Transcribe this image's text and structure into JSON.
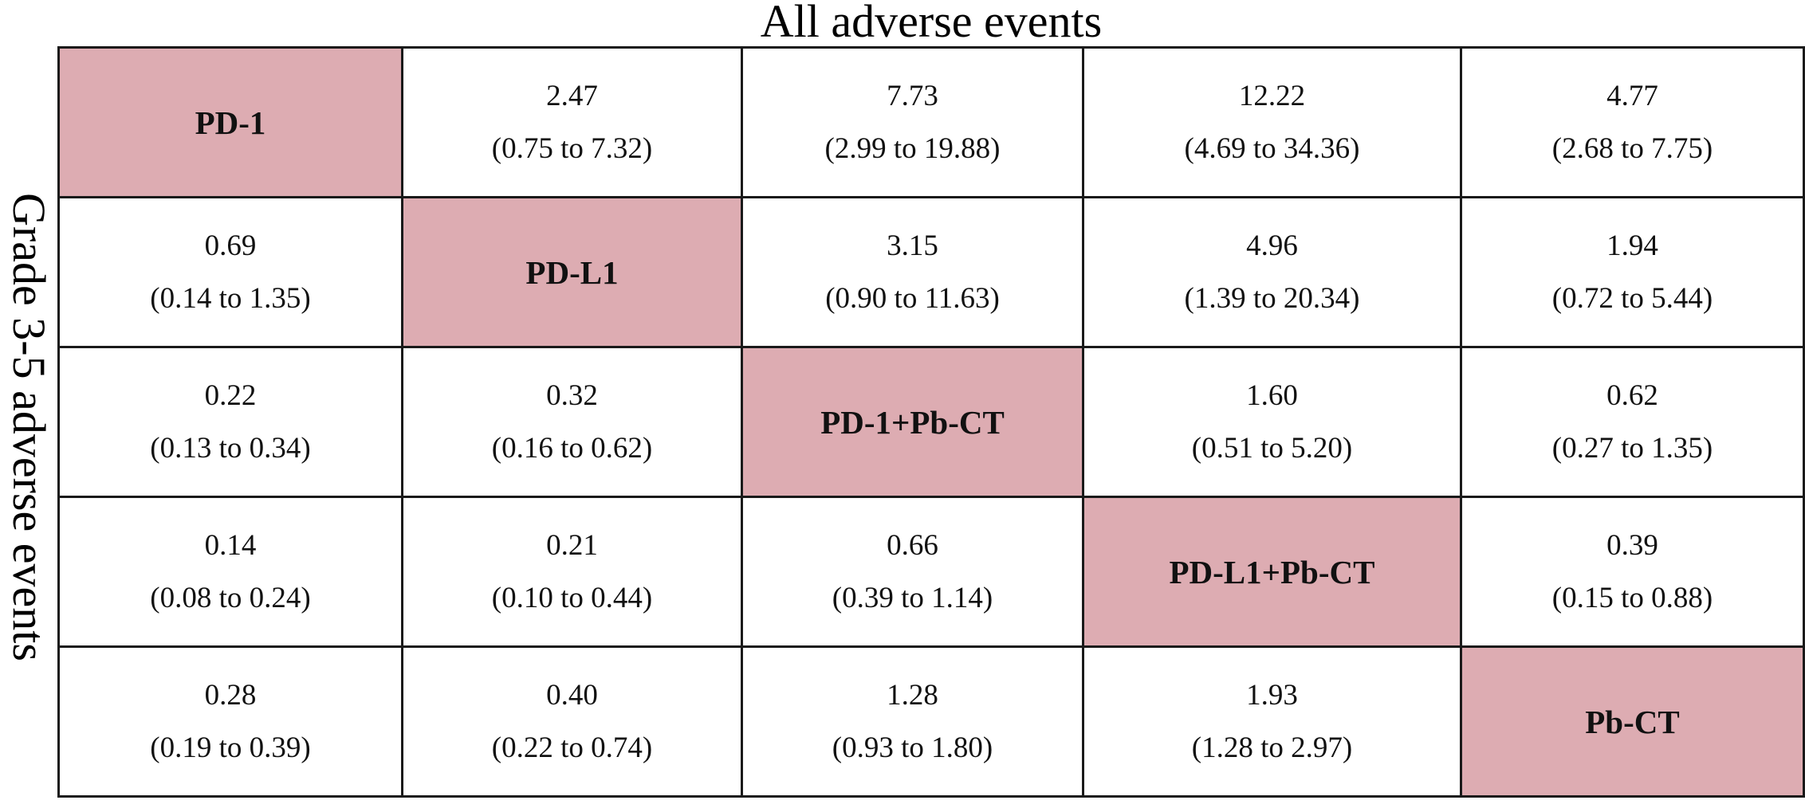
{
  "title_top": "All adverse events",
  "title_side": "Grade 3-5 adverse events",
  "diagonal_color": "#ddacb2",
  "rows": [
    [
      {
        "type": "treatment",
        "label": "PD-1"
      },
      {
        "type": "value",
        "value": "2.47",
        "ci": "(0.75 to 7.32)"
      },
      {
        "type": "value",
        "value": "7.73",
        "ci": "(2.99 to 19.88)"
      },
      {
        "type": "value",
        "value": "12.22",
        "ci": "(4.69 to 34.36)"
      },
      {
        "type": "value",
        "value": "4.77",
        "ci": "(2.68 to 7.75)"
      }
    ],
    [
      {
        "type": "value",
        "value": "0.69",
        "ci": "(0.14 to 1.35)"
      },
      {
        "type": "treatment",
        "label": "PD-L1"
      },
      {
        "type": "value",
        "value": "3.15",
        "ci": "(0.90 to 11.63)"
      },
      {
        "type": "value",
        "value": "4.96",
        "ci": "(1.39 to 20.34)"
      },
      {
        "type": "value",
        "value": "1.94",
        "ci": "(0.72 to 5.44)"
      }
    ],
    [
      {
        "type": "value",
        "value": "0.22",
        "ci": "(0.13 to 0.34)"
      },
      {
        "type": "value",
        "value": "0.32",
        "ci": "(0.16 to 0.62)"
      },
      {
        "type": "treatment",
        "label": "PD-1+Pb-CT"
      },
      {
        "type": "value",
        "value": "1.60",
        "ci": "(0.51 to 5.20)"
      },
      {
        "type": "value",
        "value": "0.62",
        "ci": "(0.27 to 1.35)"
      }
    ],
    [
      {
        "type": "value",
        "value": "0.14",
        "ci": "(0.08 to 0.24)"
      },
      {
        "type": "value",
        "value": "0.21",
        "ci": "(0.10 to 0.44)"
      },
      {
        "type": "value",
        "value": "0.66",
        "ci": "(0.39 to 1.14)"
      },
      {
        "type": "treatment",
        "label": "PD-L1+Pb-CT"
      },
      {
        "type": "value",
        "value": "0.39",
        "ci": "(0.15 to 0.88)"
      }
    ],
    [
      {
        "type": "value",
        "value": "0.28",
        "ci": "(0.19 to 0.39)"
      },
      {
        "type": "value",
        "value": "0.40",
        "ci": "(0.22 to 0.74)"
      },
      {
        "type": "value",
        "value": "1.28",
        "ci": "(0.93 to 1.80)"
      },
      {
        "type": "value",
        "value": "1.93",
        "ci": "(1.28 to 2.97)"
      },
      {
        "type": "treatment",
        "label": "Pb-CT"
      }
    ]
  ]
}
